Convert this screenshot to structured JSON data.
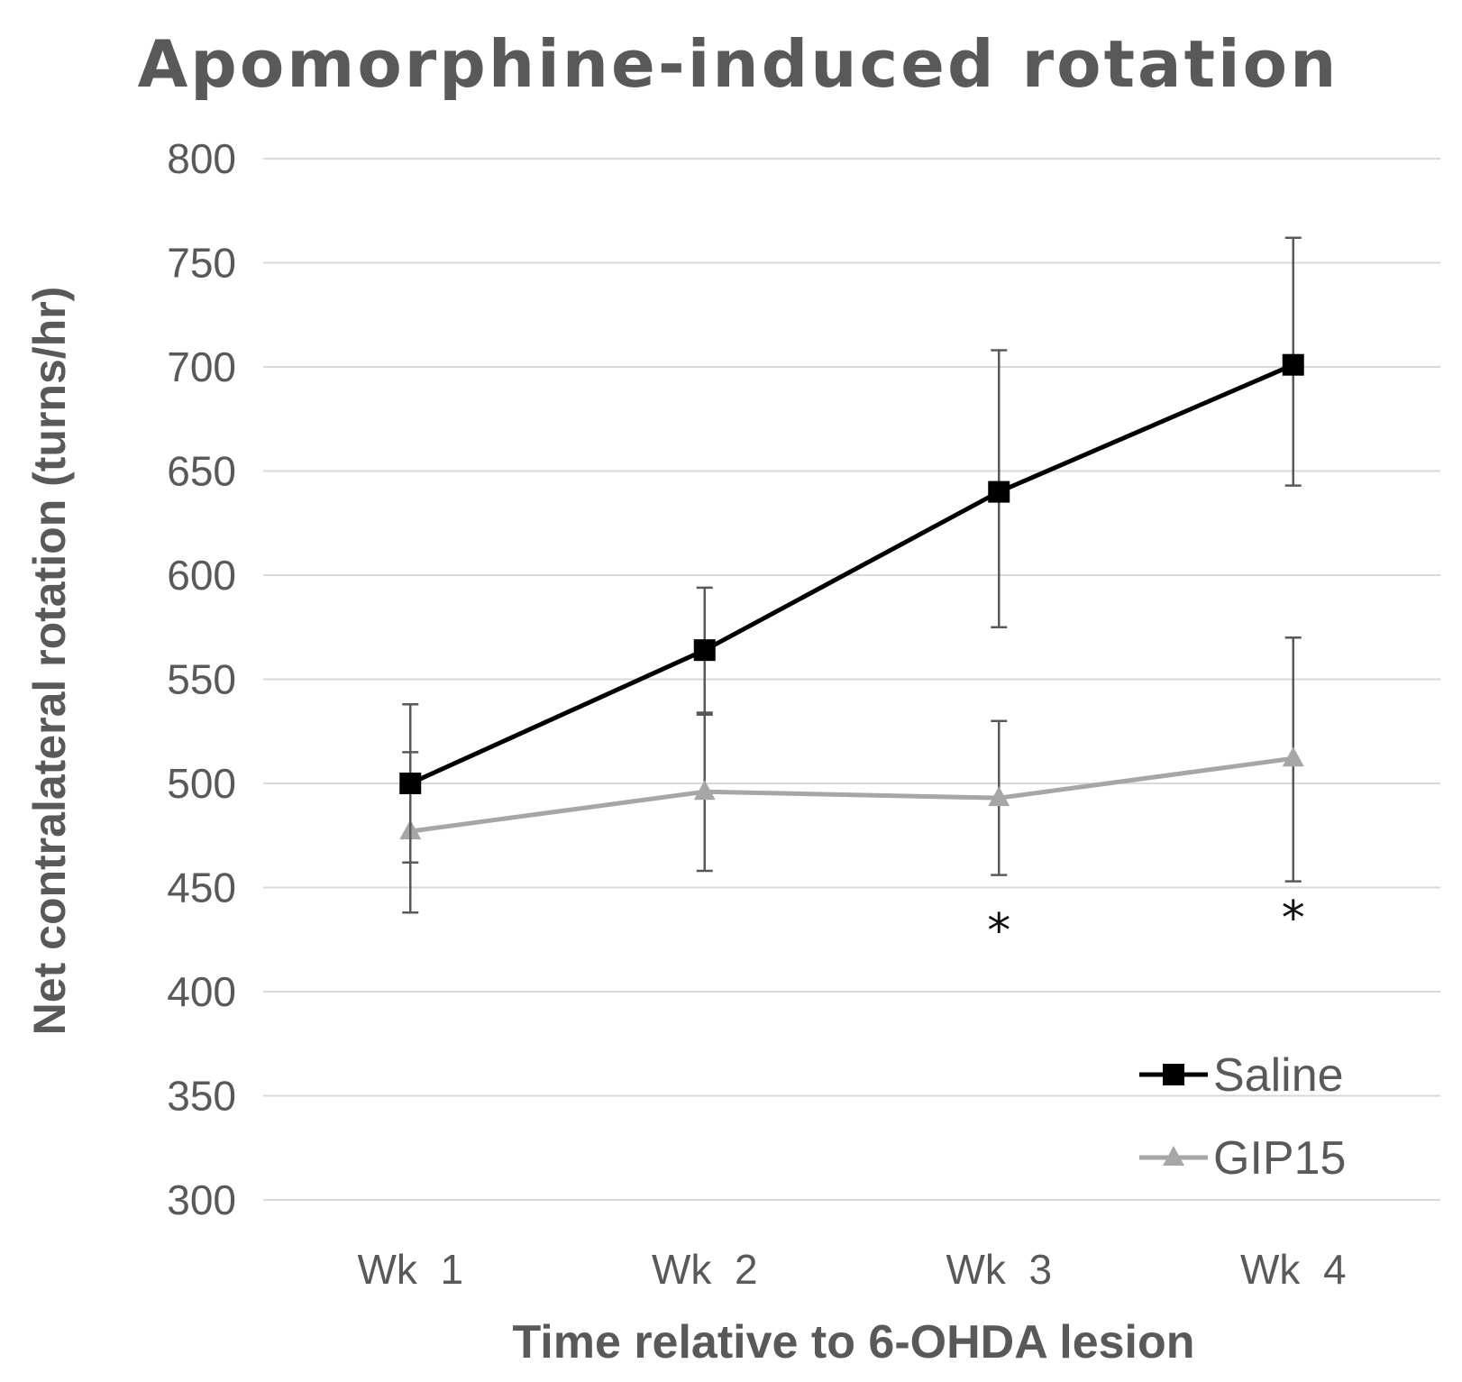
{
  "chart_data": {
    "type": "line",
    "title": "Apomorphine-induced rotation",
    "xlabel": "Time relative to 6-OHDA lesion",
    "ylabel": "Net contralateral rotation (turns/hr)",
    "categories": [
      "Wk  1",
      "Wk  2",
      "Wk  3",
      "Wk  4"
    ],
    "ylim": [
      300,
      800
    ],
    "yticks": [
      300,
      350,
      400,
      450,
      500,
      550,
      600,
      650,
      700,
      750,
      800
    ],
    "grid": true,
    "legend_position": "bottom-right",
    "series": [
      {
        "name": "Saline",
        "color": "#000000",
        "marker": "square",
        "values": [
          500,
          564,
          640,
          701
        ],
        "error_upper": [
          538,
          594,
          708,
          762
        ],
        "error_lower": [
          462,
          534,
          575,
          643
        ]
      },
      {
        "name": "GIP15",
        "color": "#a6a6a6",
        "marker": "triangle",
        "values": [
          477,
          496,
          493,
          512
        ],
        "error_upper": [
          515,
          533,
          530,
          570
        ],
        "error_lower": [
          438,
          458,
          456,
          453
        ]
      }
    ],
    "annotations": [
      {
        "category_index": 2,
        "text": "*",
        "y": 432
      },
      {
        "category_index": 3,
        "text": "*",
        "y": 438
      }
    ]
  }
}
